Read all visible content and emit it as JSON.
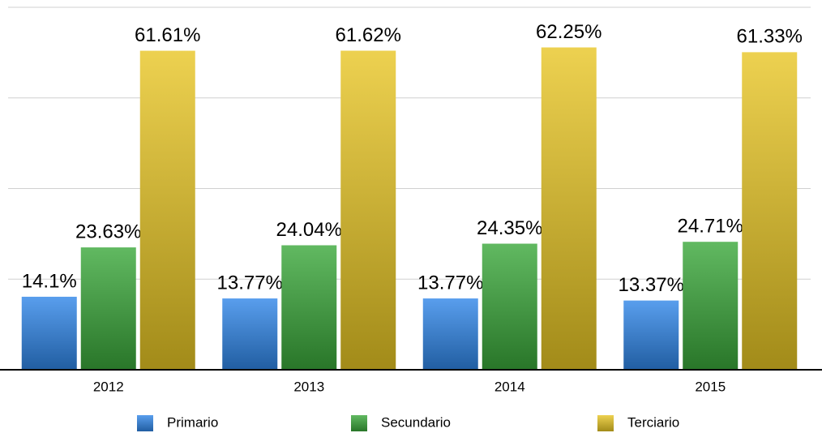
{
  "chart_data": {
    "type": "bar",
    "categories": [
      "2012",
      "2013",
      "2014",
      "2015"
    ],
    "series": [
      {
        "name": "Primario",
        "color": "#2f86e8",
        "values": [
          14.1,
          13.77,
          13.77,
          13.37
        ],
        "value_labels": [
          "14.1%",
          "13.77%",
          "13.77%",
          "13.37%"
        ]
      },
      {
        "name": "Secundario",
        "color": "#3aa83a",
        "values": [
          23.63,
          24.04,
          24.35,
          24.71
        ],
        "value_labels": [
          "23.63%",
          "24.04%",
          "24.35%",
          "24.71%"
        ]
      },
      {
        "name": "Terciario",
        "color": "#e8c624",
        "values": [
          61.61,
          61.62,
          62.25,
          61.33
        ],
        "value_labels": [
          "61.61%",
          "61.62%",
          "62.25%",
          "61.33%"
        ]
      }
    ],
    "ylim": [
      0,
      70
    ],
    "yticks": [
      0,
      17.5,
      35,
      52.5,
      70
    ],
    "grid": true,
    "legend": "bottom"
  }
}
